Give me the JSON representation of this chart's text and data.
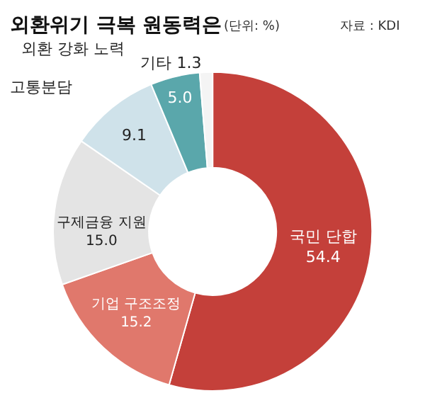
{
  "chart_data": {
    "type": "donut",
    "title": "외환위기 극복 원동력은",
    "subtitle": "(단위: %)",
    "annotations": [
      "자료 : KDI"
    ],
    "categories": [
      "국민 단합",
      "기업 구조조정",
      "구제금융 지원",
      "고통분담",
      "외환 강화 노력",
      "기타"
    ],
    "values": [
      54.4,
      15.2,
      15.0,
      9.1,
      5.0,
      1.3
    ],
    "value_labels": [
      "54.4",
      "15.2",
      "15.0",
      "9.1",
      "5.0",
      "1.3"
    ],
    "colors": [
      "#c4403a",
      "#e0786c",
      "#e4e4e4",
      "#cfe2ea",
      "#5aa7ab",
      "#f4f4f4"
    ],
    "legend": false
  }
}
